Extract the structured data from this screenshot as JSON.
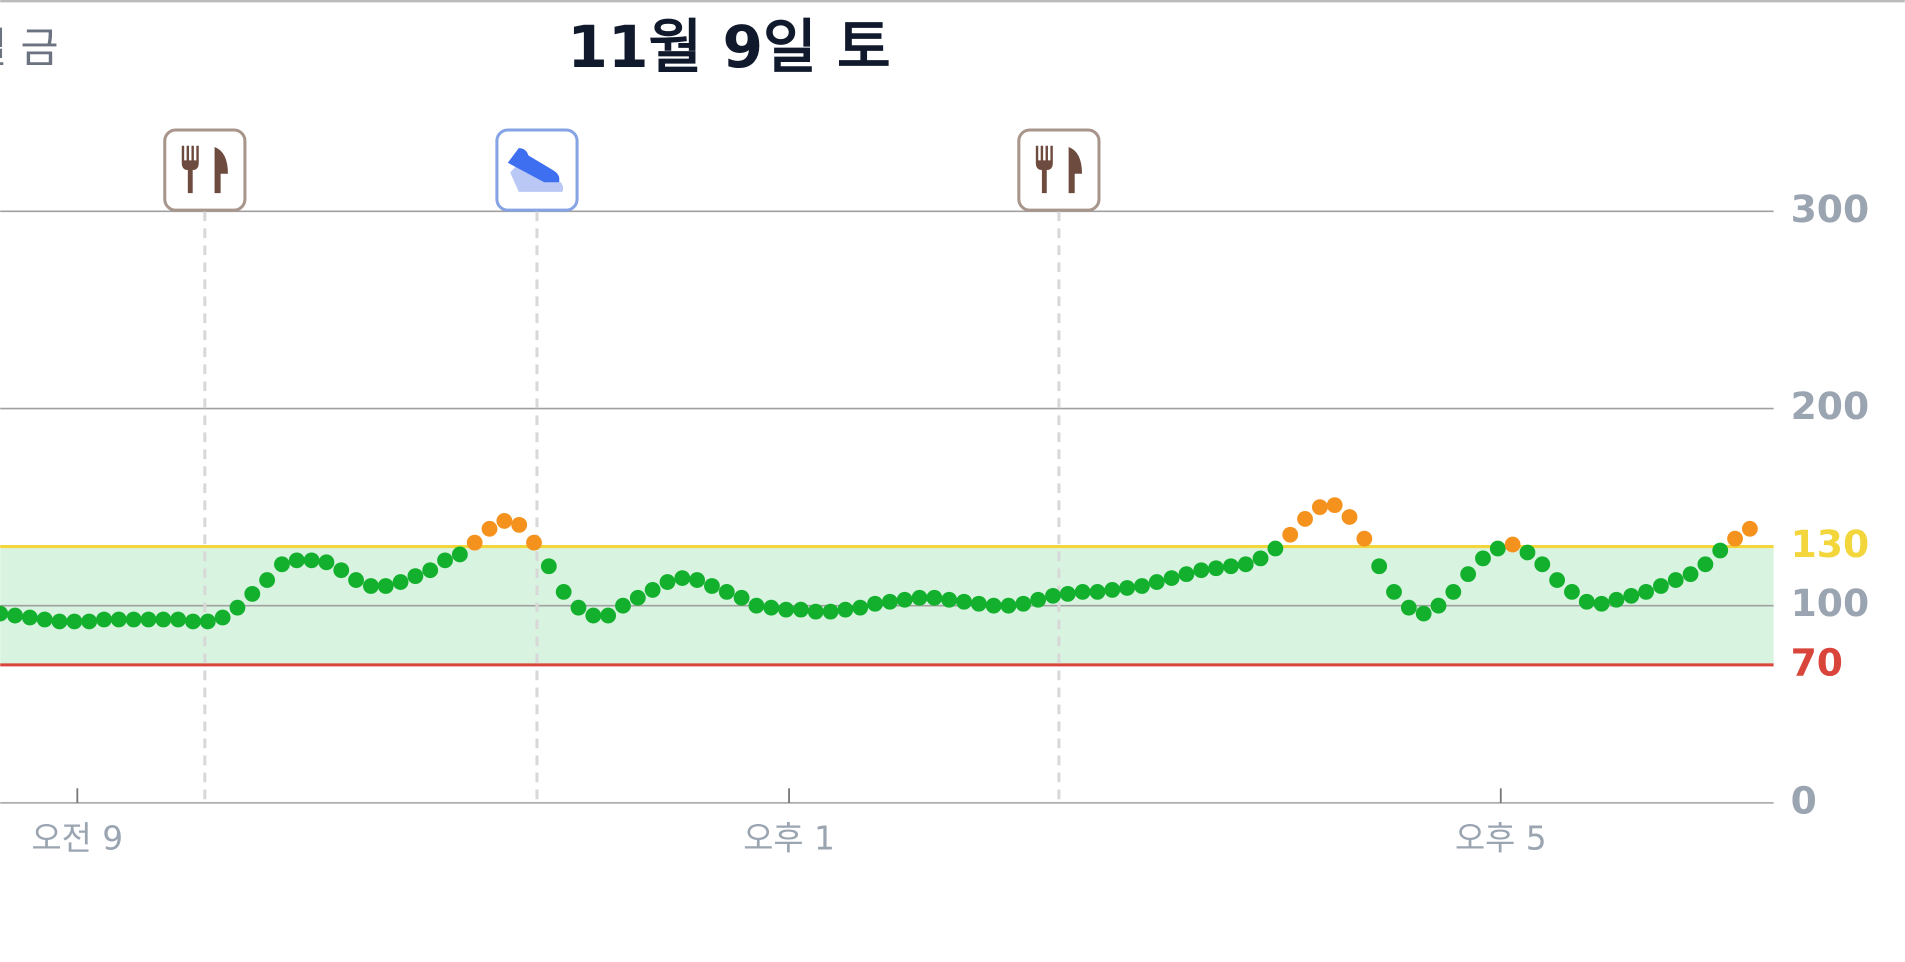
{
  "chart_data": {
    "type": "scatter",
    "title": "11월 9일 토",
    "previous_day_label": "일 금",
    "x": [
      514,
      519,
      524,
      529,
      534,
      539,
      544,
      549,
      554,
      559,
      564,
      569,
      574,
      579,
      584,
      589,
      594,
      599,
      604,
      609,
      614,
      619,
      624,
      629,
      634,
      639,
      644,
      649,
      654,
      659,
      664,
      669,
      674,
      679,
      684,
      689,
      694,
      699,
      704,
      709,
      714,
      719,
      724,
      729,
      734,
      739,
      744,
      749,
      754,
      759,
      764,
      769,
      774,
      779,
      784,
      789,
      794,
      799,
      804,
      809,
      814,
      819,
      824,
      829,
      834,
      839,
      844,
      849,
      854,
      859,
      864,
      869,
      874,
      879,
      884,
      889,
      894,
      899,
      904,
      909,
      914,
      919,
      924,
      929,
      934,
      939,
      944,
      949,
      954,
      959,
      964,
      969,
      974,
      979,
      984,
      989,
      994,
      999,
      1004,
      1009,
      1014,
      1019,
      1024,
      1029,
      1034,
      1039,
      1044,
      1049,
      1054,
      1059,
      1064,
      1069,
      1074,
      1079,
      1084,
      1089,
      1094,
      1099,
      1104
    ],
    "values": [
      96,
      95,
      94,
      93,
      92,
      92,
      92,
      93,
      93,
      93,
      93,
      93,
      93,
      92,
      92,
      94,
      99,
      106,
      113,
      121,
      123,
      123,
      122,
      118,
      113,
      110,
      110,
      112,
      115,
      118,
      123,
      126,
      132,
      139,
      143,
      141,
      132,
      120,
      107,
      99,
      95,
      95,
      100,
      104,
      108,
      112,
      114,
      113,
      110,
      107,
      104,
      100,
      99,
      98,
      98,
      97,
      97,
      98,
      99,
      101,
      102,
      103,
      104,
      104,
      103,
      102,
      101,
      100,
      100,
      101,
      103,
      105,
      106,
      107,
      107,
      108,
      109,
      110,
      112,
      114,
      116,
      118,
      119,
      120,
      121,
      124,
      129,
      136,
      144,
      150,
      151,
      145,
      134,
      120,
      107,
      99,
      96,
      100,
      107,
      116,
      124,
      129,
      131,
      127,
      121,
      113,
      107,
      102,
      101,
      103,
      105,
      107,
      110,
      113,
      116,
      121,
      128,
      134,
      139
    ],
    "colors": {
      "in_range": "#12b02c",
      "high": "#f5921e",
      "low_line": "#d9453b",
      "high_line": "#f2d63c",
      "band": "#d8f3e0"
    },
    "target_range": [
      70,
      130
    ],
    "xlim": [
      514,
      1112
    ],
    "xticks": [
      {
        "value": 540,
        "label": "오전 9"
      },
      {
        "value": 780,
        "label": "오후 1"
      },
      {
        "value": 1020,
        "label": "오후 5"
      }
    ],
    "ylim": [
      0,
      300
    ],
    "yticks": [
      0,
      100,
      200,
      300
    ],
    "grid": true,
    "events": [
      {
        "x": 583,
        "kind": "meal"
      },
      {
        "x": 695,
        "kind": "exercise"
      },
      {
        "x": 871,
        "kind": "meal"
      }
    ]
  }
}
